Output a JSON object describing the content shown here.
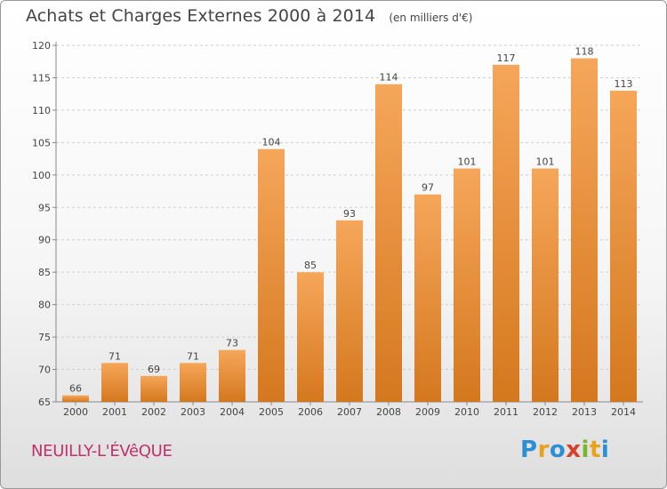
{
  "header": {
    "title": "Achats et Charges Externes 2000 à 2014",
    "subtitle": "(en milliers d'€)"
  },
  "footer": {
    "commune": "NEUILLY-L'ÉVêQUE",
    "logo_letters": [
      "P",
      "r",
      "o",
      "x",
      "i",
      "t",
      "i"
    ],
    "logo_colors": [
      "#2a8fd4",
      "#e8a21c",
      "#2a8fd4",
      "#d8402a",
      "#7ab52e",
      "#e8a21c",
      "#2a8fd4"
    ]
  },
  "colors": {
    "bar_top": "#f6a65a",
    "bar_bottom": "#d4781e",
    "text": "#444444",
    "commune": "#c0306a"
  },
  "chart_data": {
    "type": "bar",
    "title": "Achats et Charges Externes 2000 à 2014",
    "subtitle": "(en milliers d'€)",
    "categories": [
      "2000",
      "2001",
      "2002",
      "2003",
      "2004",
      "2005",
      "2006",
      "2007",
      "2008",
      "2009",
      "2010",
      "2011",
      "2012",
      "2013",
      "2014"
    ],
    "values": [
      66,
      71,
      69,
      71,
      73,
      104,
      85,
      93,
      114,
      97,
      101,
      117,
      101,
      118,
      113
    ],
    "ylim": [
      65,
      120
    ],
    "yticks": [
      65,
      70,
      75,
      80,
      85,
      90,
      95,
      100,
      105,
      110,
      115,
      120
    ],
    "grid": true,
    "data_labels": true
  }
}
